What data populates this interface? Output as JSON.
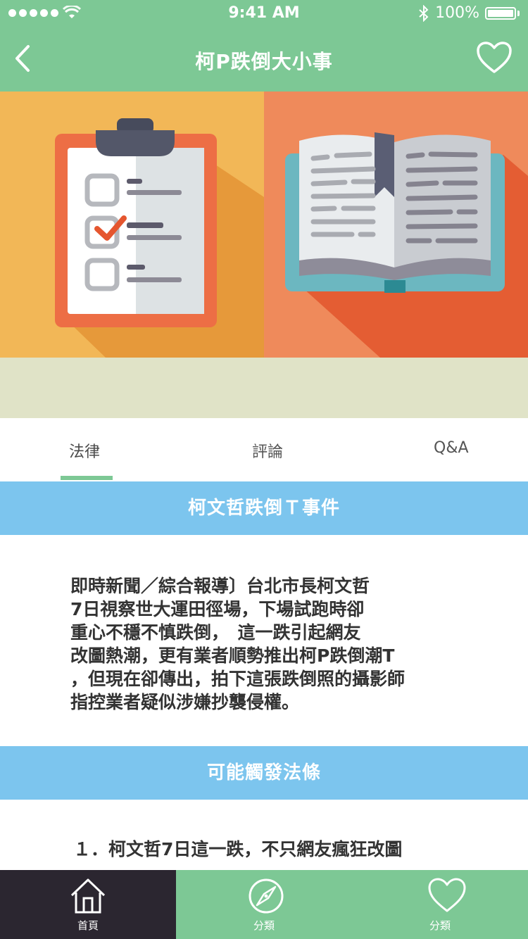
{
  "status_bar": {
    "time": "9:41 AM",
    "battery": "100%"
  },
  "nav": {
    "title": "柯P跌倒大小事"
  },
  "tabs": [
    {
      "label": "法律"
    },
    {
      "label": "評論"
    },
    {
      "label": "Q&A"
    }
  ],
  "sections": [
    {
      "title": "柯文哲跌倒Ｔ事件",
      "lines": [
        "即時新聞／綜合報導〕台北市長柯文哲",
        "7日視察世大運田徑場，下場試跑時卻",
        "重心不穩不慎跌倒，　這一跌引起網友",
        "改圖熱潮，更有業者順勢推出柯P跌倒潮T",
        "，但現在卻傳出，拍下這張跌倒照的攝影師",
        "指控業者疑似涉嫌抄襲侵權。"
      ]
    },
    {
      "title": "可能觸發法條",
      "lines": [
        "１．柯文哲7日這一跌，不只網友瘋狂改圖"
      ]
    }
  ],
  "bottom_nav": [
    {
      "label": "首頁"
    },
    {
      "label": "分類"
    },
    {
      "label": "分類"
    }
  ],
  "colors": {
    "primary_green": "#7dc895",
    "section_blue": "#7cc5ee",
    "active_tab_bg": "#2b2630"
  }
}
